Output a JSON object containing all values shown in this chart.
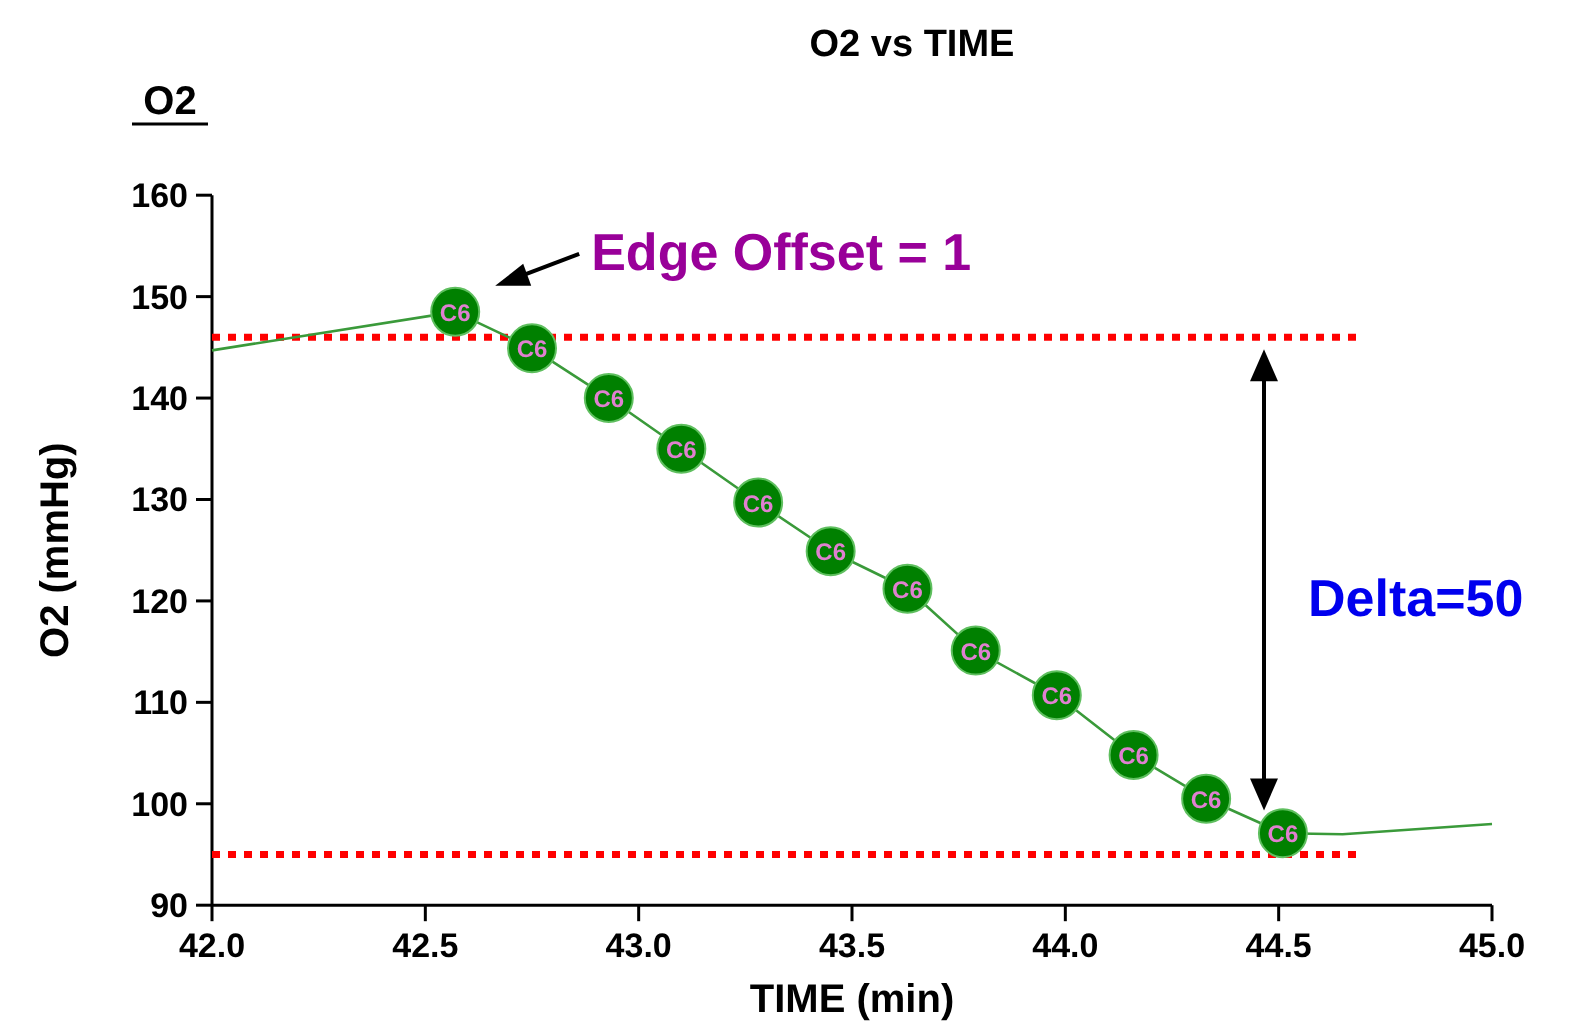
{
  "chart_data": {
    "type": "line",
    "title": "O2 vs TIME",
    "xlabel": "TIME (min)",
    "ylabel": "O2 (mmHg)",
    "xlim": [
      42,
      45
    ],
    "ylim": [
      90,
      160
    ],
    "xticks": [
      {
        "value": 42,
        "label": "42.0"
      },
      {
        "value": 42.5,
        "label": "42.5"
      },
      {
        "value": 43,
        "label": "43.0"
      },
      {
        "value": 43.5,
        "label": "43.5"
      },
      {
        "value": 44,
        "label": "44.0"
      },
      {
        "value": 44.5,
        "label": "44.5"
      },
      {
        "value": 45,
        "label": "45.0"
      }
    ],
    "yticks": [
      90,
      100,
      110,
      120,
      130,
      140,
      150,
      160
    ],
    "grid": false,
    "series": [
      {
        "color": "#3a9a3a",
        "marker": "none",
        "x": [
          42.0,
          42.57,
          42.75,
          42.93,
          43.1,
          43.28,
          43.45,
          43.63,
          43.79,
          43.98,
          44.16,
          44.33,
          44.51,
          44.65,
          45.0
        ],
        "values": [
          144.7,
          148.5,
          144.9,
          140.0,
          135.0,
          129.7,
          124.9,
          121.2,
          115.1,
          110.7,
          104.8,
          100.5,
          97.1,
          97.0,
          98.0
        ]
      },
      {
        "type": "scatter",
        "color": "#008000",
        "marker": "circle",
        "x": [
          42.57,
          42.75,
          42.93,
          43.1,
          43.28,
          43.45,
          43.63,
          43.79,
          43.98,
          44.16,
          44.33,
          44.51
        ],
        "values": [
          148.5,
          144.9,
          140.0,
          135.0,
          129.7,
          124.9,
          121.2,
          115.1,
          110.7,
          104.8,
          100.5,
          97.1
        ],
        "value_labels": [
          "C6",
          "C6",
          "C6",
          "C6",
          "C6",
          "C6",
          "C6",
          "C6",
          "C6",
          "C6",
          "C6",
          "C6"
        ]
      }
    ],
    "ref_lines": [
      {
        "axis": "y",
        "value": 146,
        "color": "#ff0000",
        "line_style": "dotted"
      },
      {
        "axis": "y",
        "value": 95,
        "color": "#ff0000",
        "line_style": "dotted"
      }
    ],
    "annotations": [
      "O2",
      {
        "text": "Edge Offset = 1",
        "x": 42.57,
        "y": 148.5
      },
      "Delta=50"
    ]
  }
}
